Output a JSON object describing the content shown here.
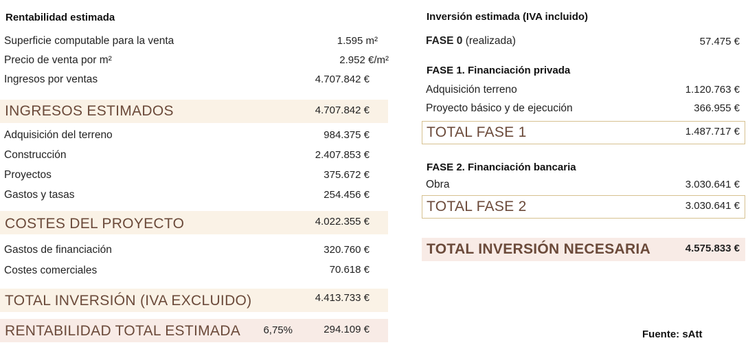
{
  "left": {
    "title": "Rentabilidad estimada",
    "surface_label": "Superficie computable para la venta",
    "surface_value": "1.595 m²",
    "price_label": "Precio de venta por m²",
    "price_value": "2.952 €/m²",
    "sales_label": "Ingresos por ventas",
    "sales_value": "4.707.842 €",
    "income_total_label": "INGRESOS ESTIMADOS",
    "income_total_value": "4.707.842 €",
    "land_label": "Adquisición del terreno",
    "land_value": "984.375 €",
    "construction_label": "Construcción",
    "construction_value": "2.407.853 €",
    "projects_label": "Proyectos",
    "projects_value": "375.672 €",
    "fees_label": "Gastos y tasas",
    "fees_value": "254.456 €",
    "costs_total_label": "COSTES DEL PROYECTO",
    "costs_total_value": "4.022.355 €",
    "financing_label": "Gastos de financiación",
    "financing_value": "320.760 €",
    "commercial_label": "Costes comerciales",
    "commercial_value": "70.618 €",
    "investment_total_label": "TOTAL INVERSIÓN (IVA EXCLUIDO)",
    "investment_total_value": "4.413.733 €",
    "profit_label": "RENTABILIDAD TOTAL ESTIMADA",
    "profit_percent": "6,75%",
    "profit_value": "294.109 €"
  },
  "right": {
    "title": "Inversión estimada (IVA incluido)",
    "phase0_label_bold": "FASE 0",
    "phase0_label_rest": " (realizada)",
    "phase0_value": "57.475 €",
    "phase1_title": "FASE 1. Financiación privada",
    "phase1_land_label": "Adquisición terreno",
    "phase1_land_value": "1.120.763 €",
    "phase1_project_label": "Proyecto básico y de ejecución",
    "phase1_project_value": "366.955 €",
    "phase1_total_label": "TOTAL FASE 1",
    "phase1_total_value": "1.487.717 €",
    "phase2_title": "FASE 2. Financiación bancaria",
    "phase2_work_label": "Obra",
    "phase2_work_value": "3.030.641 €",
    "phase2_total_label": "TOTAL FASE 2",
    "phase2_total_value": "3.030.641 €",
    "grand_total_label": "TOTAL INVERSIÓN NECESARIA",
    "grand_total_value": "4.575.833 €",
    "source": "Fuente: sAtt"
  }
}
